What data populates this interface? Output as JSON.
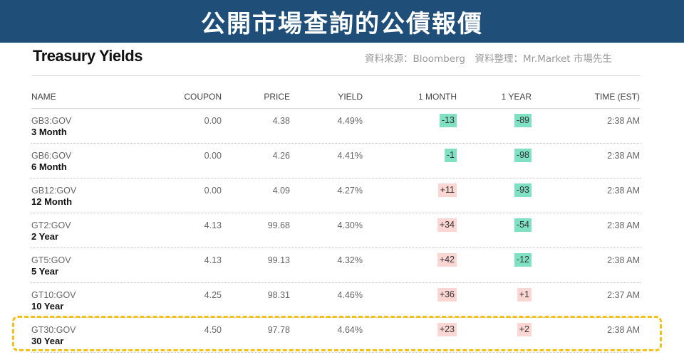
{
  "banner": {
    "title": "公開市場查詢的公債報價"
  },
  "widget": {
    "title": "Treasury Yields",
    "source_note": "資料來源：Bloomberg　資料整理：Mr.Market 市場先生"
  },
  "columns": {
    "name": "NAME",
    "coupon": "COUPON",
    "price": "PRICE",
    "yield": "YIELD",
    "one_month": "1 MONTH",
    "one_year": "1 YEAR",
    "time": "TIME (EST)"
  },
  "rows": [
    {
      "ticker": "GB3:GOV",
      "term": "3 Month",
      "coupon": "0.00",
      "price": "4.38",
      "yield": "4.49%",
      "one_month": "-13",
      "one_year": "-89",
      "time": "2:38 AM"
    },
    {
      "ticker": "GB6:GOV",
      "term": "6 Month",
      "coupon": "0.00",
      "price": "4.26",
      "yield": "4.41%",
      "one_month": "-1",
      "one_year": "-98",
      "time": "2:38 AM"
    },
    {
      "ticker": "GB12:GOV",
      "term": "12 Month",
      "coupon": "0.00",
      "price": "4.09",
      "yield": "4.27%",
      "one_month": "+11",
      "one_year": "-93",
      "time": "2:38 AM"
    },
    {
      "ticker": "GT2:GOV",
      "term": "2 Year",
      "coupon": "4.13",
      "price": "99.68",
      "yield": "4.30%",
      "one_month": "+34",
      "one_year": "-54",
      "time": "2:38 AM"
    },
    {
      "ticker": "GT5:GOV",
      "term": "5 Year",
      "coupon": "4.13",
      "price": "99.13",
      "yield": "4.32%",
      "one_month": "+42",
      "one_year": "-12",
      "time": "2:38 AM"
    },
    {
      "ticker": "GT10:GOV",
      "term": "10 Year",
      "coupon": "4.25",
      "price": "98.31",
      "yield": "4.46%",
      "one_month": "+36",
      "one_year": "+1",
      "time": "2:37 AM"
    },
    {
      "ticker": "GT30:GOV",
      "term": "30 Year",
      "coupon": "4.50",
      "price": "97.78",
      "yield": "4.64%",
      "one_month": "+23",
      "one_year": "+2",
      "time": "2:38 AM"
    }
  ],
  "colors": {
    "banner_bg": "#1f4e79",
    "negative_badge": "#7fe0c2",
    "positive_badge": "#fbd6d3",
    "highlight_border": "#f3c11a"
  }
}
